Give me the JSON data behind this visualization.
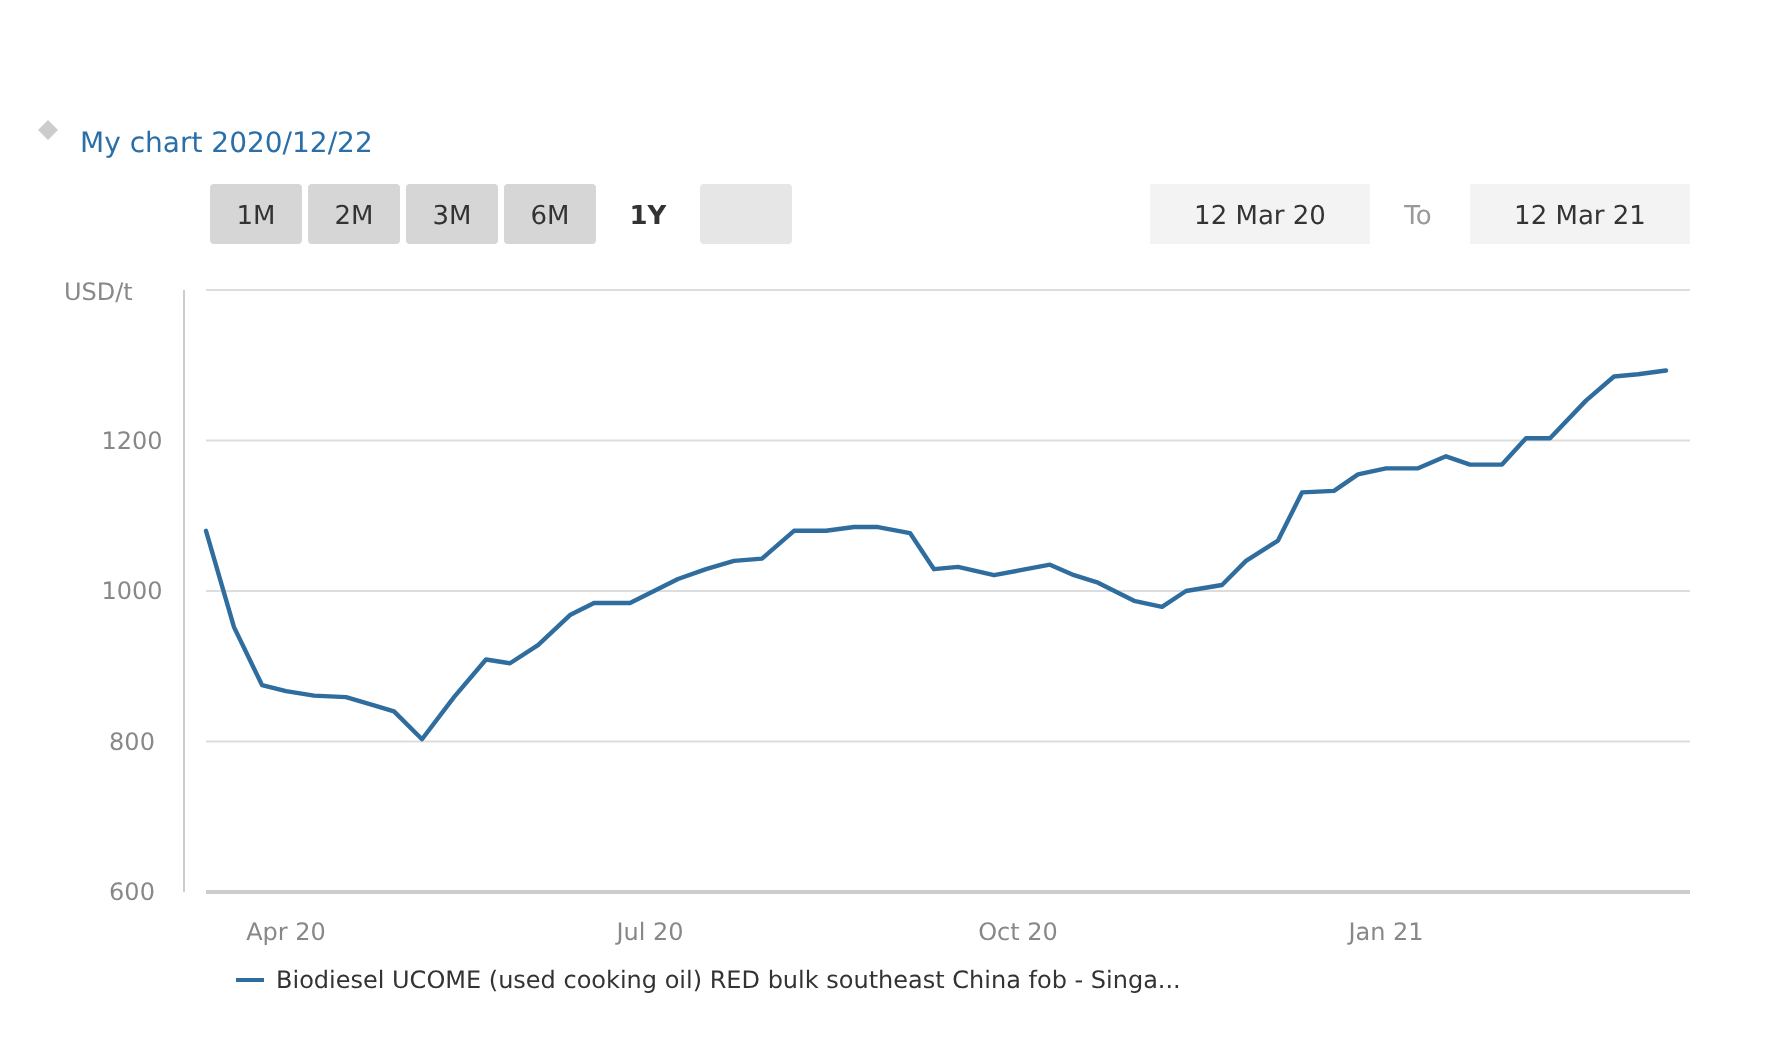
{
  "chart_data": {
    "type": "line",
    "title": "My chart 2020/12/22",
    "ylabel": "USD/t",
    "annotations": [
      "1M",
      "2M",
      "3M",
      "6M",
      "1Y",
      "12 Mar 20",
      "To",
      "12 Mar 21"
    ],
    "x": [
      "2020-03-12",
      "2020-03-19",
      "2020-03-26",
      "2020-04-01",
      "2020-04-08",
      "2020-04-16",
      "2020-04-23",
      "2020-04-28",
      "2020-05-05",
      "2020-05-13",
      "2020-05-21",
      "2020-05-27",
      "2020-06-03",
      "2020-06-11",
      "2020-06-17",
      "2020-06-26",
      "2020-07-02",
      "2020-07-08",
      "2020-07-15",
      "2020-07-22",
      "2020-07-29",
      "2020-08-06",
      "2020-08-14",
      "2020-08-21",
      "2020-08-27",
      "2020-09-04",
      "2020-09-10",
      "2020-09-16",
      "2020-09-25",
      "2020-10-01",
      "2020-10-09",
      "2020-10-15",
      "2020-10-21",
      "2020-10-30",
      "2020-11-06",
      "2020-11-12",
      "2020-11-21",
      "2020-11-27",
      "2020-12-05",
      "2020-12-11",
      "2020-12-19",
      "2020-12-25",
      "2021-01-01",
      "2021-01-09",
      "2021-01-16",
      "2021-01-22",
      "2021-01-30",
      "2021-02-05",
      "2021-02-11",
      "2021-02-20",
      "2021-02-27",
      "2021-03-05",
      "2021-03-12"
    ],
    "series": [
      {
        "name": "Biodiesel UCOME (used cooking oil) RED bulk southeast China fob - Singa...",
        "color": "#2f6d9e",
        "values": [
          1080,
          952,
          875,
          867,
          861,
          859,
          848,
          840,
          803,
          859,
          909,
          904,
          928,
          968,
          984,
          984,
          1000,
          1016,
          1029,
          1040,
          1043,
          1080,
          1080,
          1085,
          1085,
          1077,
          1029,
          1032,
          1021,
          1027,
          1035,
          1021,
          1011,
          987,
          979,
          1000,
          1008,
          1040,
          1067,
          1131,
          1133,
          1155,
          1163,
          1163,
          1179,
          1168,
          1168,
          1203,
          1203,
          1253,
          1285,
          1288,
          1293
        ]
      }
    ],
    "xlim": [
      "2020-03-12",
      "2021-03-18"
    ],
    "xticks": [
      {
        "value": "2020-04-01",
        "label": "Apr 20"
      },
      {
        "value": "2020-07-01",
        "label": "Jul 20"
      },
      {
        "value": "2020-10-01",
        "label": "Oct 20"
      },
      {
        "value": "2021-01-01",
        "label": "Jan 21"
      }
    ],
    "ylim": [
      600,
      1400
    ],
    "yticks": [
      600,
      800,
      1000,
      1200,
      {
        "value": 1400,
        "label": null
      }
    ],
    "grid": "y",
    "legend": "bottom",
    "marker": "none",
    "line_style": "solid"
  }
}
